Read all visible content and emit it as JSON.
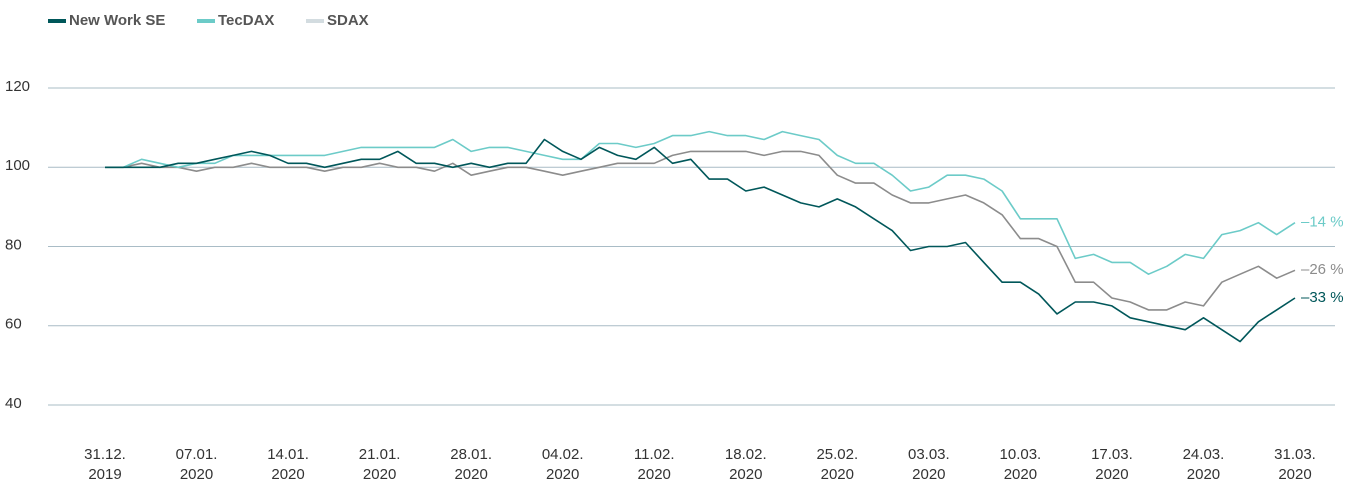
{
  "chart_data": {
    "type": "line",
    "categories": [
      "31.12.\n2019",
      null,
      null,
      null,
      null,
      "07.01.\n2020",
      null,
      null,
      null,
      null,
      "14.01.\n2020",
      null,
      null,
      null,
      null,
      "21.01.\n2020",
      null,
      null,
      null,
      null,
      "28.01.\n2020",
      null,
      null,
      null,
      null,
      "04.02.\n2020",
      null,
      null,
      null,
      null,
      "11.02.\n2020",
      null,
      null,
      null,
      null,
      "18.02.\n2020",
      null,
      null,
      null,
      null,
      "25.02.\n2020",
      null,
      null,
      null,
      null,
      "03.03.\n2020",
      null,
      null,
      null,
      null,
      "10.03.\n2020",
      null,
      null,
      null,
      null,
      "17.03.\n2020",
      null,
      null,
      null,
      null,
      "24.03.\n2020",
      null,
      null,
      null,
      null,
      "31.03.\n2020"
    ],
    "series": [
      {
        "name": "New Work SE",
        "color": "#00575a",
        "legend_color": "#00575a",
        "label": "–33 %",
        "values": [
          100,
          100,
          100,
          100,
          101,
          101,
          102,
          103,
          104,
          103,
          101,
          101,
          100,
          101,
          102,
          102,
          104,
          101,
          101,
          100,
          101,
          100,
          101,
          101,
          107,
          104,
          102,
          105,
          103,
          102,
          105,
          101,
          102,
          97,
          97,
          94,
          95,
          93,
          91,
          90,
          92,
          90,
          87,
          84,
          79,
          80,
          80,
          81,
          76,
          71,
          71,
          68,
          63,
          66,
          66,
          65,
          62,
          61,
          60,
          59,
          62,
          59,
          56,
          61,
          64,
          67
        ]
      },
      {
        "name": "TecDAX",
        "color": "#6ccbc8",
        "legend_color": "#6ccbc8",
        "label": "–14 %",
        "values": [
          100,
          100,
          102,
          101,
          100,
          101,
          101,
          103,
          103,
          103,
          103,
          103,
          103,
          104,
          105,
          105,
          105,
          105,
          105,
          107,
          104,
          105,
          105,
          104,
          103,
          102,
          102,
          106,
          106,
          105,
          106,
          108,
          108,
          109,
          108,
          108,
          107,
          109,
          108,
          107,
          103,
          101,
          101,
          98,
          94,
          95,
          98,
          98,
          97,
          94,
          87,
          87,
          87,
          77,
          78,
          76,
          76,
          73,
          75,
          78,
          77,
          83,
          84,
          86,
          83,
          86
        ]
      },
      {
        "name": "SDAX",
        "color": "#8c8c8c",
        "legend_color": "#d3dce0",
        "label": "–26 %",
        "values": [
          100,
          100,
          101,
          100,
          100,
          99,
          100,
          100,
          101,
          100,
          100,
          100,
          99,
          100,
          100,
          101,
          100,
          100,
          99,
          101,
          98,
          99,
          100,
          100,
          99,
          98,
          99,
          100,
          101,
          101,
          101,
          103,
          104,
          104,
          104,
          104,
          103,
          104,
          104,
          103,
          98,
          96,
          96,
          93,
          91,
          91,
          92,
          93,
          91,
          88,
          82,
          82,
          80,
          71,
          71,
          67,
          66,
          64,
          64,
          66,
          65,
          71,
          73,
          75,
          72,
          74
        ]
      }
    ],
    "ylim": [
      40,
      120
    ],
    "yticks": [
      40,
      60,
      80,
      100,
      120
    ],
    "grid": true,
    "grid_color": "#a9bcc6",
    "legend": "top-left"
  }
}
